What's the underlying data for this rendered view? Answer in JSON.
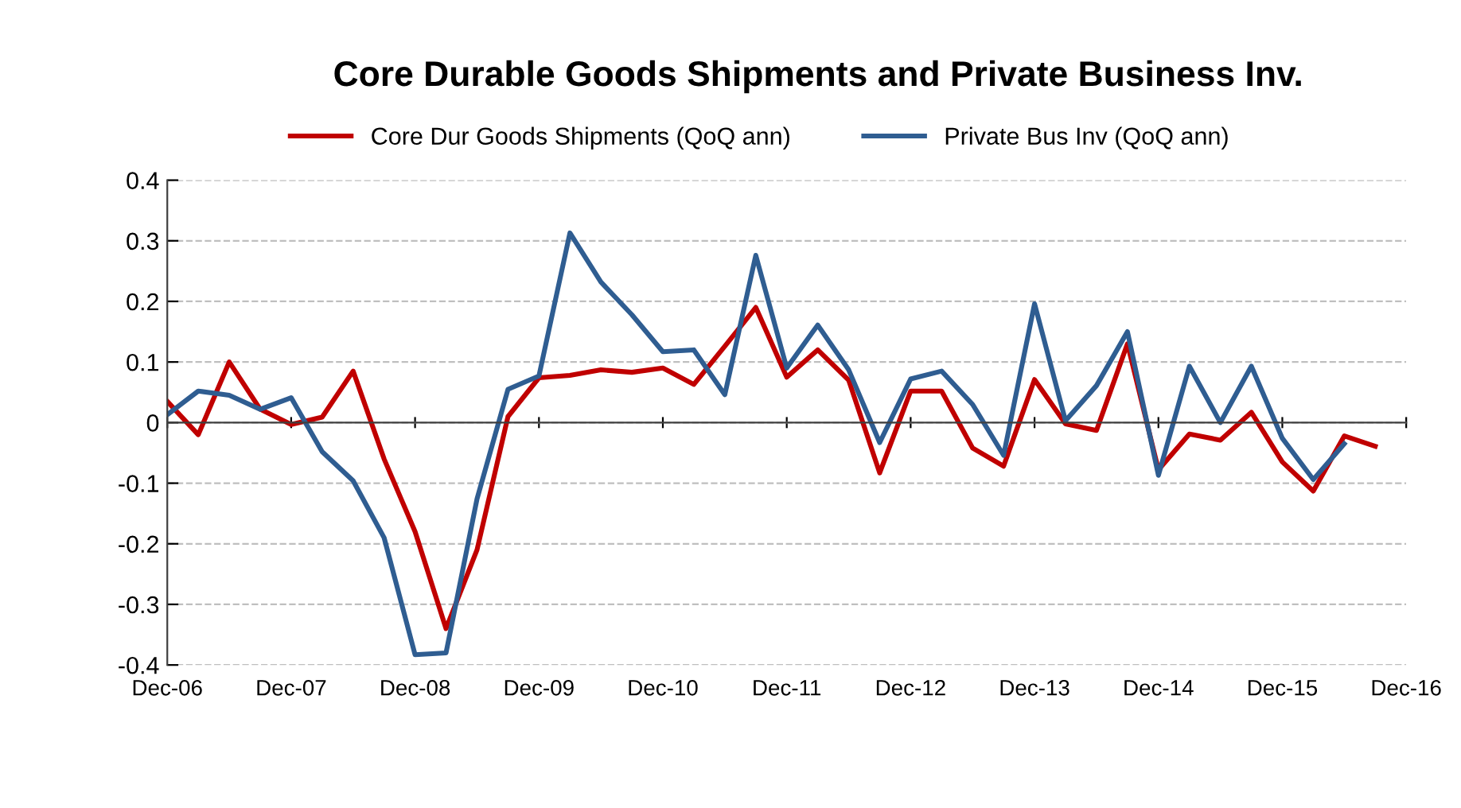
{
  "chart_data": {
    "type": "line",
    "title": "Core Durable Goods Shipments and Private Business Inv.",
    "x": [
      "2006-12",
      "2007-03",
      "2007-06",
      "2007-09",
      "2007-12",
      "2008-03",
      "2008-06",
      "2008-09",
      "2008-12",
      "2009-03",
      "2009-06",
      "2009-09",
      "2009-12",
      "2010-03",
      "2010-06",
      "2010-09",
      "2010-12",
      "2011-03",
      "2011-06",
      "2011-09",
      "2011-12",
      "2012-03",
      "2012-06",
      "2012-09",
      "2012-12",
      "2013-03",
      "2013-06",
      "2013-09",
      "2013-12",
      "2014-03",
      "2014-06",
      "2014-09",
      "2014-12",
      "2015-03",
      "2015-06",
      "2015-09",
      "2015-12",
      "2016-03",
      "2016-06",
      "2016-09"
    ],
    "series": [
      {
        "name": "Core Dur Goods Shipments (QoQ ann)",
        "color": "#c00000",
        "values": [
          0.035,
          -0.02,
          0.1,
          0.022,
          -0.003,
          0.009,
          0.085,
          -0.06,
          -0.18,
          -0.34,
          -0.21,
          0.01,
          0.074,
          0.078,
          0.087,
          0.083,
          0.09,
          0.063,
          0.126,
          0.19,
          0.075,
          0.12,
          0.07,
          -0.083,
          0.052,
          0.052,
          -0.042,
          -0.072,
          0.071,
          -0.002,
          -0.013,
          0.13,
          -0.078,
          -0.019,
          -0.029,
          0.017,
          -0.065,
          -0.113,
          -0.022,
          -0.039
        ]
      },
      {
        "name": "Private Bus Inv (QoQ ann)",
        "color": "#2f5d91",
        "values": [
          0.013,
          0.052,
          0.045,
          0.022,
          0.041,
          -0.048,
          -0.096,
          -0.19,
          -0.383,
          -0.38,
          -0.126,
          0.055,
          0.077,
          0.313,
          0.232,
          0.178,
          0.117,
          0.12,
          0.046,
          0.276,
          0.09,
          0.161,
          0.087,
          -0.033,
          0.072,
          0.085,
          0.03,
          -0.054,
          0.196,
          0.003,
          0.061,
          0.15,
          -0.087,
          0.093,
          0.0,
          0.093,
          -0.026,
          -0.094,
          -0.035,
          null
        ]
      }
    ],
    "xlim": [
      "2006-12",
      "2016-12"
    ],
    "xticks": [
      {
        "value": "2006-12",
        "label": "Dec-06"
      },
      {
        "value": "2007-12",
        "label": "Dec-07"
      },
      {
        "value": "2008-12",
        "label": "Dec-08"
      },
      {
        "value": "2009-12",
        "label": "Dec-09"
      },
      {
        "value": "2010-12",
        "label": "Dec-10"
      },
      {
        "value": "2011-12",
        "label": "Dec-11"
      },
      {
        "value": "2012-12",
        "label": "Dec-12"
      },
      {
        "value": "2013-12",
        "label": "Dec-13"
      },
      {
        "value": "2014-12",
        "label": "Dec-14"
      },
      {
        "value": "2015-12",
        "label": "Dec-15"
      },
      {
        "value": "2016-12",
        "label": "Dec-16"
      }
    ],
    "ylim": [
      -0.4,
      0.4
    ],
    "yticks": [
      -0.4,
      -0.3,
      -0.2,
      -0.1,
      0,
      0.1,
      0.2,
      0.3,
      0.4
    ],
    "grid": "y",
    "legend": "top",
    "marker": "none",
    "line_style": "solid"
  }
}
